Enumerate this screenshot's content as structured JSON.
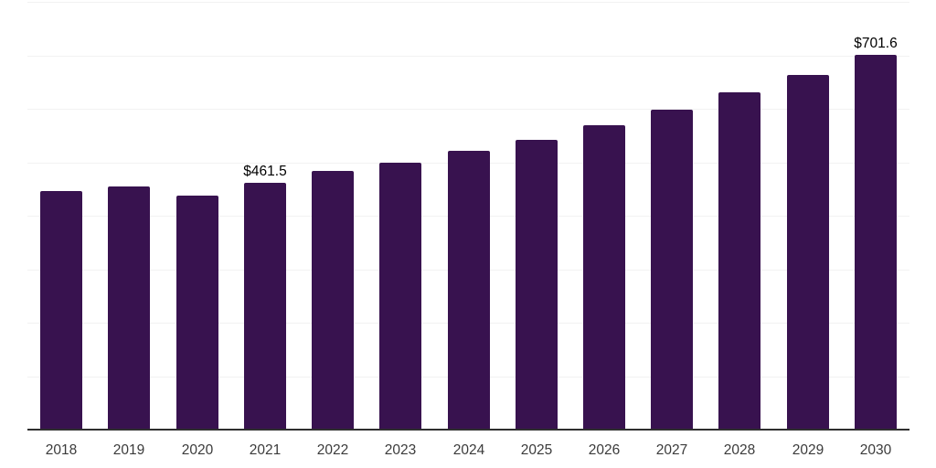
{
  "chart_data": {
    "type": "bar",
    "title": "",
    "xlabel": "",
    "ylabel": "",
    "categories": [
      "2018",
      "2019",
      "2020",
      "2021",
      "2022",
      "2023",
      "2024",
      "2025",
      "2026",
      "2027",
      "2028",
      "2029",
      "2030"
    ],
    "values": [
      447,
      455,
      438,
      461.5,
      484,
      499,
      521,
      542,
      569,
      598,
      630,
      664,
      701.6
    ],
    "data_labels": {
      "2021": "$461.5",
      "2030": "$701.6"
    },
    "ylim": [
      0,
      800
    ],
    "gridline_step": 100,
    "grid": "horizontal",
    "legend": "none",
    "y_axis_labels_visible": false
  },
  "colors": {
    "background": "#ffffff",
    "bar": "#38124F",
    "gridline": "#f2f2f2",
    "axis_line": "#2f2f2f",
    "tick_label": "#3b3b3b",
    "data_label": "#000000"
  }
}
